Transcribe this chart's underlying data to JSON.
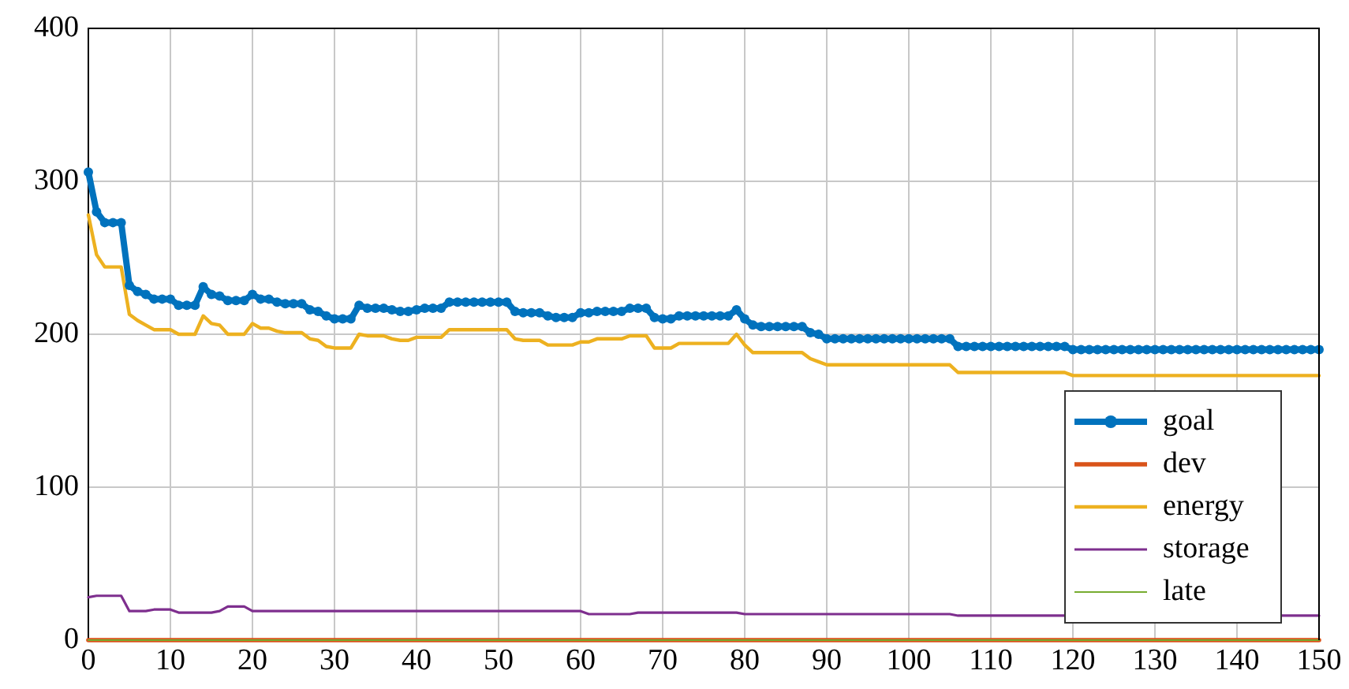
{
  "chart_data": {
    "type": "line",
    "x": [
      0,
      1,
      2,
      3,
      4,
      5,
      6,
      7,
      8,
      9,
      10,
      11,
      12,
      13,
      14,
      15,
      16,
      17,
      18,
      19,
      20,
      21,
      22,
      23,
      24,
      25,
      26,
      27,
      28,
      29,
      30,
      31,
      32,
      33,
      34,
      35,
      36,
      37,
      38,
      39,
      40,
      41,
      42,
      43,
      44,
      45,
      46,
      47,
      48,
      49,
      50,
      51,
      52,
      53,
      54,
      55,
      56,
      57,
      58,
      59,
      60,
      61,
      62,
      63,
      64,
      65,
      66,
      67,
      68,
      69,
      70,
      71,
      72,
      73,
      74,
      75,
      76,
      77,
      78,
      79,
      80,
      81,
      82,
      83,
      84,
      85,
      86,
      87,
      88,
      89,
      90,
      91,
      92,
      93,
      94,
      95,
      96,
      97,
      98,
      99,
      100,
      101,
      102,
      103,
      104,
      105,
      106,
      107,
      108,
      109,
      110,
      111,
      112,
      113,
      114,
      115,
      116,
      117,
      118,
      119,
      120,
      121,
      122,
      123,
      124,
      125,
      126,
      127,
      128,
      129,
      130,
      131,
      132,
      133,
      134,
      135,
      136,
      137,
      138,
      139,
      140,
      141,
      142,
      143,
      144,
      145,
      146,
      147,
      148,
      149,
      150
    ],
    "series": [
      {
        "name": "goal",
        "color": "#0072bd",
        "marker": "circle",
        "values": [
          306,
          280,
          273,
          273,
          273,
          232,
          228,
          226,
          223,
          223,
          223,
          219,
          219,
          219,
          231,
          226,
          225,
          222,
          222,
          222,
          226,
          223,
          223,
          221,
          220,
          220,
          220,
          216,
          215,
          212,
          210,
          210,
          210,
          219,
          217,
          217,
          217,
          216,
          215,
          215,
          216,
          217,
          217,
          217,
          221,
          221,
          221,
          221,
          221,
          221,
          221,
          221,
          215,
          214,
          214,
          214,
          212,
          211,
          211,
          211,
          214,
          214,
          215,
          215,
          215,
          215,
          217,
          217,
          217,
          211,
          210,
          210,
          212,
          212,
          212,
          212,
          212,
          212,
          212,
          216,
          210,
          206,
          205,
          205,
          205,
          205,
          205,
          205,
          201,
          200,
          197,
          197,
          197,
          197,
          197,
          197,
          197,
          197,
          197,
          197,
          197,
          197,
          197,
          197,
          197,
          197,
          192,
          192,
          192,
          192,
          192,
          192,
          192,
          192,
          192,
          192,
          192,
          192,
          192,
          192,
          190,
          190,
          190,
          190,
          190,
          190,
          190,
          190,
          190,
          190,
          190,
          190,
          190,
          190,
          190,
          190,
          190,
          190,
          190,
          190,
          190,
          190,
          190,
          190,
          190,
          190,
          190,
          190,
          190,
          190,
          190
        ]
      },
      {
        "name": "dev",
        "color": "#d95319",
        "marker": "none",
        "x": [
          0,
          150
        ],
        "values": [
          0,
          0
        ]
      },
      {
        "name": "energy",
        "color": "#edb120",
        "marker": "none",
        "x": [
          0,
          1,
          2,
          4,
          5,
          6,
          7,
          8,
          10,
          11,
          13,
          14,
          15,
          16,
          17,
          19,
          20,
          21,
          22,
          23,
          24,
          26,
          27,
          28,
          29,
          30,
          32,
          33,
          34,
          36,
          37,
          38,
          39,
          40,
          43,
          44,
          51,
          52,
          53,
          55,
          56,
          59,
          60,
          61,
          62,
          65,
          66,
          68,
          69,
          71,
          72,
          78,
          79,
          80,
          81,
          87,
          88,
          89,
          90,
          105,
          106,
          119,
          120,
          150
        ],
        "values": [
          278,
          252,
          244,
          244,
          213,
          209,
          206,
          203,
          203,
          200,
          200,
          212,
          207,
          206,
          200,
          200,
          207,
          204,
          204,
          202,
          201,
          201,
          197,
          196,
          192,
          191,
          191,
          200,
          199,
          199,
          197,
          196,
          196,
          198,
          198,
          203,
          203,
          197,
          196,
          196,
          193,
          193,
          195,
          195,
          197,
          197,
          199,
          199,
          191,
          191,
          194,
          194,
          200,
          193,
          188,
          188,
          184,
          182,
          180,
          180,
          175,
          175,
          173,
          173
        ]
      },
      {
        "name": "storage",
        "color": "#7e2f8e",
        "marker": "none",
        "x": [
          0,
          1,
          4,
          5,
          7,
          8,
          10,
          11,
          15,
          16,
          17,
          19,
          20,
          60,
          61,
          66,
          67,
          79,
          80,
          105,
          106,
          150
        ],
        "values": [
          28,
          29,
          29,
          19,
          19,
          20,
          20,
          18,
          18,
          19,
          22,
          22,
          19,
          19,
          17,
          17,
          18,
          18,
          17,
          17,
          16,
          16
        ]
      },
      {
        "name": "late",
        "color": "#77ac30",
        "marker": "none",
        "x": [
          0,
          150
        ],
        "values": [
          0,
          0
        ]
      }
    ],
    "xlim": [
      0,
      150
    ],
    "xticks": [
      0,
      10,
      20,
      30,
      40,
      50,
      60,
      70,
      80,
      90,
      100,
      110,
      120,
      130,
      140,
      150
    ],
    "ylim": [
      0,
      400
    ],
    "yticks": [
      0,
      100,
      200,
      300,
      400
    ],
    "grid": true,
    "legend": "bottom right"
  }
}
